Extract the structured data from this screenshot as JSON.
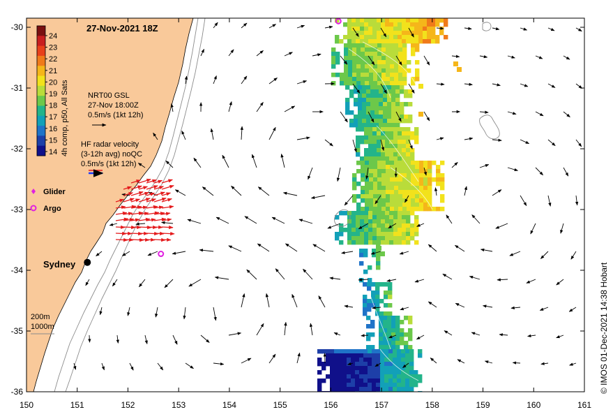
{
  "map": {
    "title": "27-Nov-2021 18Z",
    "x_ticks": [
      "150",
      "151",
      "152",
      "153",
      "154",
      "155",
      "156",
      "157",
      "158",
      "159",
      "160",
      "161"
    ],
    "y_ticks": [
      "-30",
      "-31",
      "-32",
      "-33",
      "-34",
      "-35",
      "-36"
    ],
    "x_range": [
      150,
      161
    ],
    "y_range": [
      -36,
      -29.85
    ],
    "colorbar": {
      "label": "4h comp, p50, All Sats",
      "ticks": [
        "24",
        "23",
        "22",
        "21",
        "20",
        "19",
        "18",
        "17",
        "16",
        "15",
        "14"
      ],
      "colors": [
        "#7a1010",
        "#c81e1e",
        "#e8401a",
        "#f07a1a",
        "#f5b61a",
        "#f2e21c",
        "#b9dc3a",
        "#6cc84a",
        "#23b48a",
        "#12a0b8",
        "#1f73c8",
        "#1d3fa8",
        "#10108a"
      ]
    },
    "gsl_legend": {
      "line1": "NRT00 GSL",
      "line2": "27-Nov 18:00Z",
      "line3": "0.5m/s (1kt 12h)"
    },
    "hf_legend": {
      "line1": "HF radar velocity",
      "line2": "(3-12h avg) noQC",
      "line3": "0.5m/s (1kt 12h)"
    },
    "glider_label": "Glider",
    "argo_label": "Argo",
    "city_label": "Sydney",
    "isobath_labels": [
      "200m",
      "1000m"
    ],
    "credit": "© IMOS 01-Dec-2021 14:38 Hobart",
    "colors": {
      "land": "#f9c99a",
      "hf_arrow": "#e41a1c",
      "marker": "#e020e0",
      "isobath": "#8c8c8c"
    },
    "city_location": {
      "lon": 151.2,
      "lat": -33.87
    },
    "argo_floats": [
      {
        "lon": 156.15,
        "lat": -29.9
      },
      {
        "lon": 152.65,
        "lat": -33.73
      }
    ]
  }
}
